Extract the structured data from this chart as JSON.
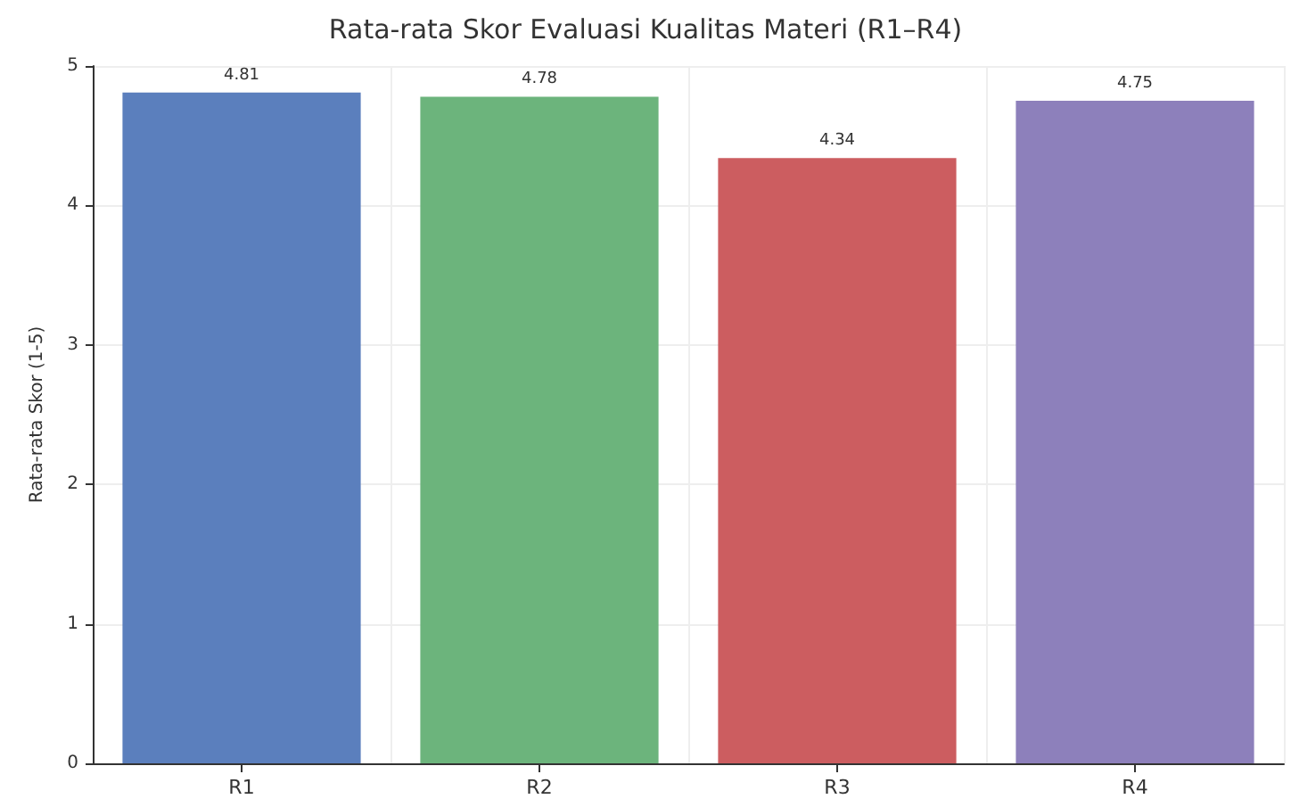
{
  "chart_data": {
    "type": "bar",
    "title": "Rata-rata Skor Evaluasi Kualitas Materi (R1–R4)",
    "ylabel": "Rata-rata Skor (1-5)",
    "categories": [
      "R1",
      "R2",
      "R3",
      "R4"
    ],
    "values": [
      4.81,
      4.78,
      4.34,
      4.75
    ],
    "colors": [
      "#5b7fbd",
      "#6cb47c",
      "#cc5d60",
      "#8d80bb"
    ],
    "ylim": [
      0,
      5
    ],
    "yticks": [
      0,
      1,
      2,
      3,
      4,
      5
    ],
    "grid": true,
    "data_labels": true
  }
}
